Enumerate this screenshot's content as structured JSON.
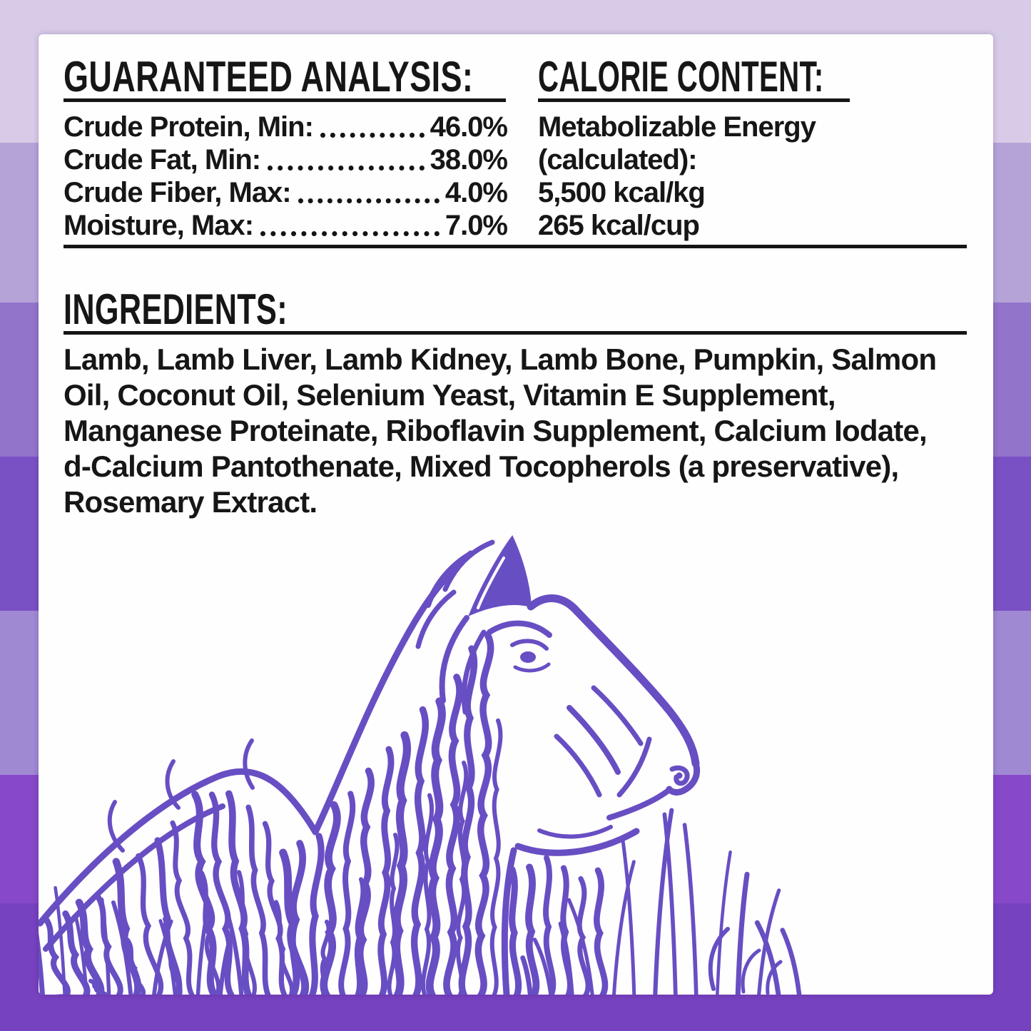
{
  "background": {
    "stripe_colors": [
      "#d8cbe8",
      "#b5a3d8",
      "#9274cb",
      "#7a50c5",
      "#a089d3",
      "#8748ca",
      "#7742c0"
    ],
    "card_color": "#fefefe"
  },
  "guaranteed_analysis": {
    "title": "GUARANTEED ANALYSIS:",
    "rows": [
      {
        "label": "Crude Protein, Min:",
        "value": "46.0%"
      },
      {
        "label": "Crude Fat, Min:",
        "value": "38.0%"
      },
      {
        "label": "Crude Fiber, Max:",
        "value": "4.0%"
      },
      {
        "label": "Moisture, Max:",
        "value": "7.0%"
      }
    ]
  },
  "calorie_content": {
    "title": "CALORIE CONTENT:",
    "lines": [
      "Metabolizable Energy",
      "(calculated):",
      "5,500 kcal/kg",
      "265 kcal/cup"
    ]
  },
  "ingredients": {
    "title": "INGREDIENTS:",
    "lines": [
      "Lamb, Lamb Liver, Lamb Kidney, Lamb Bone, Pumpkin, Salmon",
      "Oil, Coconut Oil, Selenium Yeast, Vitamin E Supplement,",
      "Manganese Proteinate, Riboflavin Supplement, Calcium Iodate,",
      "d-Calcium Pantothenate, Mixed Tocopherols (a preservative),",
      "Rosemary Extract."
    ]
  },
  "illustration": {
    "description": "lamb line-art with grass",
    "color": "#684ec3"
  },
  "text_color": "#161616"
}
